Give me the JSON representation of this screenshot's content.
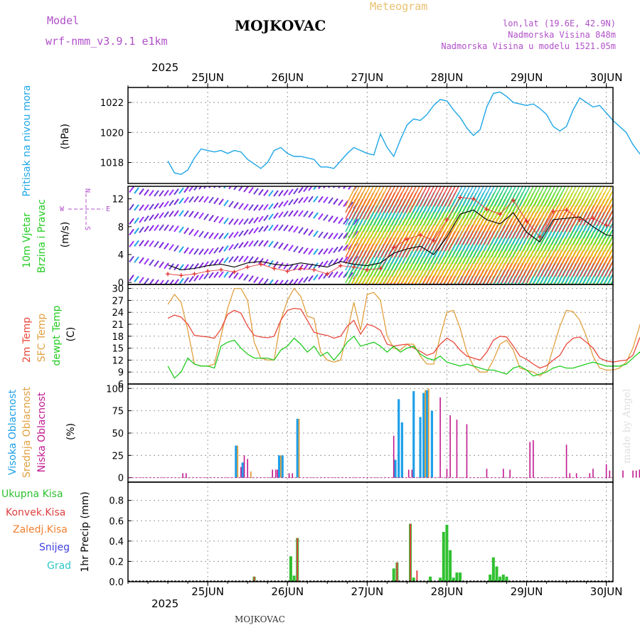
{
  "header": {
    "model_label": "Model",
    "model_name": "wrf-nmm_v3.9.1 e1km",
    "city": "MOJKOVAC",
    "product": "Meteogram",
    "coords": "lon,lat (19.6E, 42.9N)",
    "elevation": "Nadmorska Visina 848m",
    "model_elevation": "Nadmorska Visina u modelu 1521.05m"
  },
  "footer": {
    "city": "MOJKOVAC",
    "credit": "made by Angel"
  },
  "colors": {
    "pressure": "#1ea6e6",
    "wind_speed": "#000000",
    "gust": "#e03030",
    "t2m": "#e8483c",
    "tsfc": "#e0a040",
    "dewpt": "#22cc22",
    "cloud_high": "#1ea0e8",
    "cloud_mid": "#e0a040",
    "cloud_low": "#c01890",
    "precip_total": "#30c030",
    "precip_conv": "#e04040",
    "precip_frz": "#f08030",
    "precip_snow": "#4040e0",
    "precip_hail": "#30c8c8"
  },
  "time_axis": {
    "year": "2025",
    "days": [
      "25JUN",
      "26JUN",
      "27JUN",
      "28JUN",
      "29JUN",
      "30JUN"
    ]
  },
  "chart_data": [
    {
      "type": "line",
      "panel": "pressure",
      "ylabel": [
        "Pritisak na nivou mora",
        "(hPa)"
      ],
      "ylim": [
        1016.6,
        1023.0
      ],
      "yticks": [
        1018,
        1020,
        1022
      ],
      "grid": true,
      "x": [
        0,
        2,
        4,
        6,
        8,
        10,
        12,
        14,
        16,
        18,
        20,
        22,
        24,
        26,
        28,
        30,
        32,
        34,
        36,
        38,
        40,
        42,
        44,
        46,
        48,
        50,
        52,
        54,
        56,
        58,
        60,
        62,
        64,
        66,
        68,
        70,
        72,
        74,
        76,
        78,
        80,
        82,
        84,
        86,
        88,
        90,
        92,
        94,
        96,
        98,
        100,
        102,
        104,
        106,
        108,
        110,
        112,
        114,
        116,
        118,
        120,
        122,
        124,
        126,
        128,
        130,
        132,
        134,
        136,
        138,
        140,
        142,
        144
      ],
      "series": [
        {
          "values": [
            1018.1,
            1017.3,
            1017.2,
            1017.5,
            1018.3,
            1018.9,
            1018.8,
            1018.7,
            1018.8,
            1018.6,
            1018.8,
            1018.7,
            1018.2,
            1017.9,
            1017.6,
            1018.0,
            1018.8,
            1019.0,
            1018.6,
            1018.4,
            1018.4,
            1018.3,
            1018.2,
            1017.7,
            1017.7,
            1017.6,
            1018.1,
            1018.6,
            1019.0,
            1018.8,
            1018.6,
            1018.5,
            1019.9,
            1019.0,
            1018.4,
            1019.5,
            1020.5,
            1020.9,
            1020.8,
            1021.2,
            1021.8,
            1022.2,
            1022.1,
            1021.5,
            1021.0,
            1020.3,
            1019.8,
            1020.2,
            1021.7,
            1022.6,
            1022.7,
            1022.4,
            1022.0,
            1021.9,
            1021.8,
            1021.9,
            1021.6,
            1021.2,
            1020.4,
            1020.1,
            1020.4,
            1021.5,
            1022.3,
            1022.0,
            1021.7,
            1021.8,
            1021.3,
            1020.8,
            1020.4,
            1020.0,
            1019.2,
            1018.6,
            1018.2
          ]
        }
      ]
    },
    {
      "type": "line",
      "panel": "wind",
      "ylabel": [
        "10m Vjetar",
        "Brzina i Pravac",
        "(m/s)"
      ],
      "ylim": [
        -0.3,
        13.8
      ],
      "yticks": [
        0,
        4,
        8,
        12
      ],
      "compass": {
        "n": "N",
        "w": "W",
        "e": "E",
        "s": "S"
      },
      "x": [
        0,
        4,
        8,
        12,
        16,
        20,
        24,
        28,
        32,
        36,
        40,
        44,
        48,
        52,
        56,
        60,
        64,
        68,
        72,
        76,
        80,
        84,
        88,
        92,
        96,
        100,
        104,
        108,
        112,
        116,
        120,
        124,
        128,
        132,
        136,
        140,
        144
      ],
      "series": [
        {
          "values": [
            2.5,
            1.8,
            2.0,
            2.4,
            2.6,
            2.2,
            2.8,
            3.0,
            2.6,
            2.4,
            2.8,
            2.5,
            2.2,
            3.0,
            2.6,
            2.4,
            2.8,
            4.2,
            4.8,
            5.2,
            4.0,
            6.5,
            9.8,
            10.4,
            9.0,
            8.4,
            10.0,
            7.2,
            5.8,
            9.0,
            9.2,
            9.4,
            8.0,
            6.8,
            6.6,
            6.8,
            7.0
          ]
        },
        {
          "values": [
            1.2,
            1.0,
            1.2,
            1.6,
            1.8,
            1.5,
            2.2,
            2.6,
            2.0,
            1.6,
            2.0,
            1.8,
            1.2,
            2.4,
            2.2,
            1.8,
            2.0,
            5.0,
            6.2,
            6.8,
            6.0,
            9.0,
            12.2,
            12.0,
            10.5,
            9.8,
            11.8,
            8.8,
            6.5,
            10.2,
            10.4,
            9.0,
            9.2,
            8.2,
            7.6,
            8.0,
            8.4
          ]
        }
      ]
    },
    {
      "type": "line",
      "panel": "temperature",
      "ylabel": [
        "2m Temp",
        "SFC Temp",
        "dewpt Temp",
        "(C)"
      ],
      "ylim": [
        6,
        31
      ],
      "yticks": [
        6,
        9,
        12,
        15,
        18,
        21,
        24,
        27,
        30
      ],
      "grid": true,
      "x": [
        0,
        2,
        4,
        6,
        8,
        10,
        12,
        14,
        16,
        18,
        20,
        22,
        24,
        26,
        28,
        30,
        32,
        34,
        36,
        38,
        40,
        42,
        44,
        46,
        48,
        50,
        52,
        54,
        56,
        58,
        60,
        62,
        64,
        66,
        68,
        70,
        72,
        74,
        76,
        78,
        80,
        82,
        84,
        86,
        88,
        90,
        92,
        94,
        96,
        98,
        100,
        102,
        104,
        106,
        108,
        110,
        112,
        114,
        116,
        118,
        120,
        122,
        124,
        126,
        128,
        130,
        132,
        134,
        136,
        138,
        140,
        142,
        144
      ],
      "series": [
        {
          "values": [
            22.5,
            23.3,
            22.8,
            21.0,
            18.2,
            18.0,
            17.8,
            17.5,
            19.8,
            23.5,
            24.5,
            23.8,
            20.5,
            18.2,
            17.8,
            17.6,
            18.0,
            22.0,
            24.5,
            25.0,
            24.8,
            22.0,
            19.0,
            18.5,
            18.2,
            17.5,
            18.0,
            20.5,
            22.0,
            18.5,
            21.0,
            20.5,
            19.5,
            16.0,
            15.5,
            15.8,
            16.0,
            15.0,
            14.2,
            13.2,
            13.8,
            16.0,
            17.5,
            16.5,
            14.5,
            13.0,
            12.5,
            12.0,
            14.0,
            17.0,
            18.0,
            17.8,
            15.5,
            13.0,
            12.2,
            11.0,
            10.0,
            10.6,
            12.0,
            13.2,
            16.0,
            17.5,
            17.8,
            16.5,
            15.0,
            12.5,
            11.8,
            11.5,
            11.8,
            12.0,
            13.2,
            17.5,
            20.0
          ]
        },
        {
          "values": [
            26.0,
            28.5,
            26.5,
            19.5,
            11.0,
            10.5,
            10.5,
            11.0,
            18.0,
            25.0,
            30.0,
            30.0,
            27.0,
            16.5,
            12.5,
            12.0,
            12.0,
            22.0,
            27.0,
            30.0,
            28.0,
            23.0,
            22.5,
            14.0,
            12.0,
            11.5,
            12.0,
            19.0,
            26.5,
            19.5,
            28.5,
            29.0,
            27.0,
            18.0,
            15.0,
            14.5,
            16.0,
            16.0,
            13.0,
            11.0,
            11.0,
            18.0,
            24.0,
            24.5,
            20.0,
            14.0,
            10.5,
            9.0,
            9.0,
            12.0,
            16.0,
            17.0,
            14.5,
            10.0,
            9.5,
            9.0,
            8.0,
            9.5,
            15.0,
            20.5,
            24.5,
            24.2,
            22.0,
            18.0,
            13.0,
            10.0,
            9.5,
            9.5,
            10.0,
            11.5,
            15.0,
            20.5,
            26.0
          ]
        },
        {
          "values": [
            10.5,
            7.5,
            9.0,
            12.5,
            11.0,
            10.5,
            10.5,
            10.0,
            15.5,
            16.5,
            17.0,
            15.0,
            13.5,
            12.5,
            12.5,
            12.5,
            12.0,
            14.5,
            15.5,
            17.5,
            16.0,
            14.0,
            15.5,
            13.0,
            14.0,
            12.0,
            14.0,
            16.5,
            18.0,
            15.5,
            16.0,
            16.5,
            15.5,
            14.0,
            15.5,
            14.0,
            15.0,
            15.5,
            13.5,
            12.5,
            12.0,
            13.0,
            11.5,
            11.0,
            10.5,
            11.0,
            10.5,
            10.0,
            9.5,
            9.5,
            9.0,
            8.5,
            10.0,
            10.5,
            9.5,
            8.0,
            8.5,
            9.0,
            10.0,
            10.5,
            10.0,
            10.0,
            10.5,
            11.0,
            11.5,
            11.0,
            10.5,
            10.5,
            10.5,
            11.0,
            12.5,
            14.0,
            12.0
          ]
        }
      ]
    },
    {
      "type": "bar",
      "panel": "clouds",
      "ylabel": [
        "Visoka Oblacnost",
        "Srednja Oblacnost",
        "Niska Oblacnost",
        "(%)"
      ],
      "ylim": [
        -5,
        105
      ],
      "yticks": [
        0,
        25,
        50,
        75,
        100
      ],
      "grid": true,
      "series": [
        {
          "name": "Visoka Oblacnost",
          "x": [
            20.5,
            22.5,
            33.5,
            34.5,
            39,
            68.5,
            69.5,
            70.5,
            74,
            76,
            77,
            78,
            79.5
          ],
          "values": [
            36,
            17,
            25,
            25,
            66,
            20,
            88,
            62,
            97,
            68,
            95,
            98,
            75
          ]
        },
        {
          "name": "Srednja Oblacnost",
          "x": [
            21,
            25,
            34,
            39.5,
            77.5,
            78.5
          ],
          "values": [
            36,
            7,
            25,
            66,
            98,
            100
          ]
        },
        {
          "name": "Niska Oblacnost",
          "x": [
            4.5,
            5.5,
            22,
            23,
            24,
            31.5,
            32.5,
            33,
            36.5,
            37.5,
            68,
            72.5,
            73.5,
            82,
            84,
            85,
            87,
            90,
            96,
            101,
            103,
            109,
            110,
            120,
            121,
            123,
            127,
            128,
            132,
            133,
            137,
            140,
            141,
            142,
            143.5
          ],
          "values": [
            5,
            5,
            12,
            25,
            21,
            9,
            9,
            9,
            5,
            5,
            47,
            9,
            9,
            90,
            10,
            70,
            65,
            60,
            10,
            10,
            9,
            40,
            42,
            37,
            5,
            5,
            5,
            10,
            15,
            8,
            8,
            8,
            8,
            9,
            9
          ]
        }
      ]
    },
    {
      "type": "bar",
      "panel": "precip",
      "ylabel": [
        "Ukupna Kisa",
        "Konvek.Kisa",
        "Zaledj.Kisa",
        "Snijeg",
        "Grad",
        "1hr Precip (mm)"
      ],
      "ylim": [
        0,
        0.98
      ],
      "yticks": [
        0.0,
        0.2,
        0.4,
        0.6,
        0.8
      ],
      "grid": true,
      "series": [
        {
          "name": "Ukupna Kisa",
          "x": [
            26,
            37,
            38,
            39,
            68,
            69,
            73,
            74,
            79,
            82,
            83,
            84,
            85,
            86,
            87,
            88,
            97,
            98,
            99,
            100,
            101,
            102
          ],
          "values": [
            0.05,
            0.25,
            0.06,
            0.43,
            0.13,
            0.19,
            0.57,
            0.04,
            0.05,
            0.04,
            0.49,
            0.56,
            0.31,
            0.04,
            0.09,
            0.09,
            0.07,
            0.24,
            0.15,
            0.05,
            0.07,
            0.05
          ]
        },
        {
          "name": "Konvek.Kisa",
          "x": [
            26,
            39,
            69,
            73,
            75
          ],
          "values": [
            0.05,
            0.43,
            0.19,
            0.57,
            0.11
          ]
        }
      ]
    }
  ]
}
